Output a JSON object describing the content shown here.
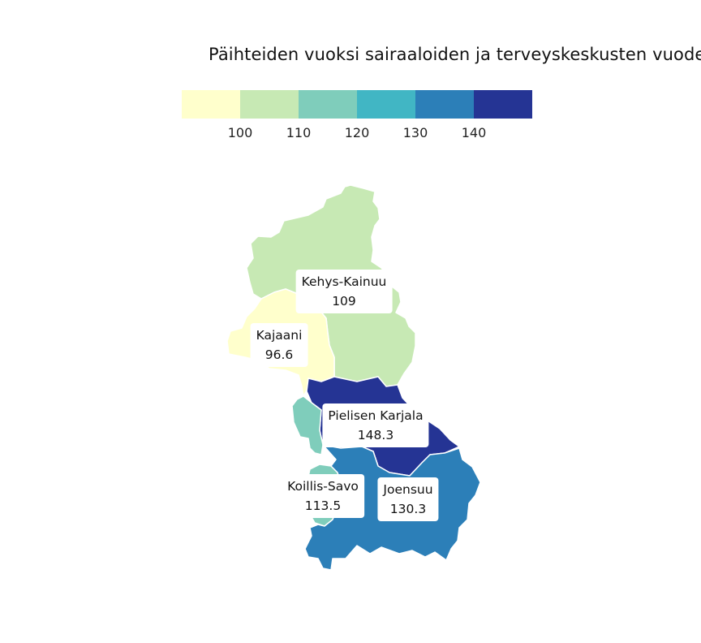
{
  "title": "Päihteiden vuoksi sairaaloiden ja terveyskeskusten vuodeo",
  "legend": {
    "colors": [
      "#ffffcc",
      "#c7e9b4",
      "#7fcdbb",
      "#41b6c4",
      "#2c7fb8",
      "#253494"
    ],
    "ticks": [
      "100",
      "110",
      "120",
      "130",
      "140"
    ]
  },
  "regions": [
    {
      "id": "kehys-kainuu",
      "name": "Kehys-Kainuu",
      "value": "109",
      "color": "#c7e9b4"
    },
    {
      "id": "kajaani",
      "name": "Kajaani",
      "value": "96.6",
      "color": "#ffffcc"
    },
    {
      "id": "pielisen-karjala",
      "name": "Pielisen Karjala",
      "value": "148.3",
      "color": "#253494"
    },
    {
      "id": "koillis-savo",
      "name": "Koillis-Savo",
      "value": "113.5",
      "color": "#7fcdbb"
    },
    {
      "id": "joensuu",
      "name": "Joensuu",
      "value": "130.3",
      "color": "#2c7fb8"
    }
  ]
}
